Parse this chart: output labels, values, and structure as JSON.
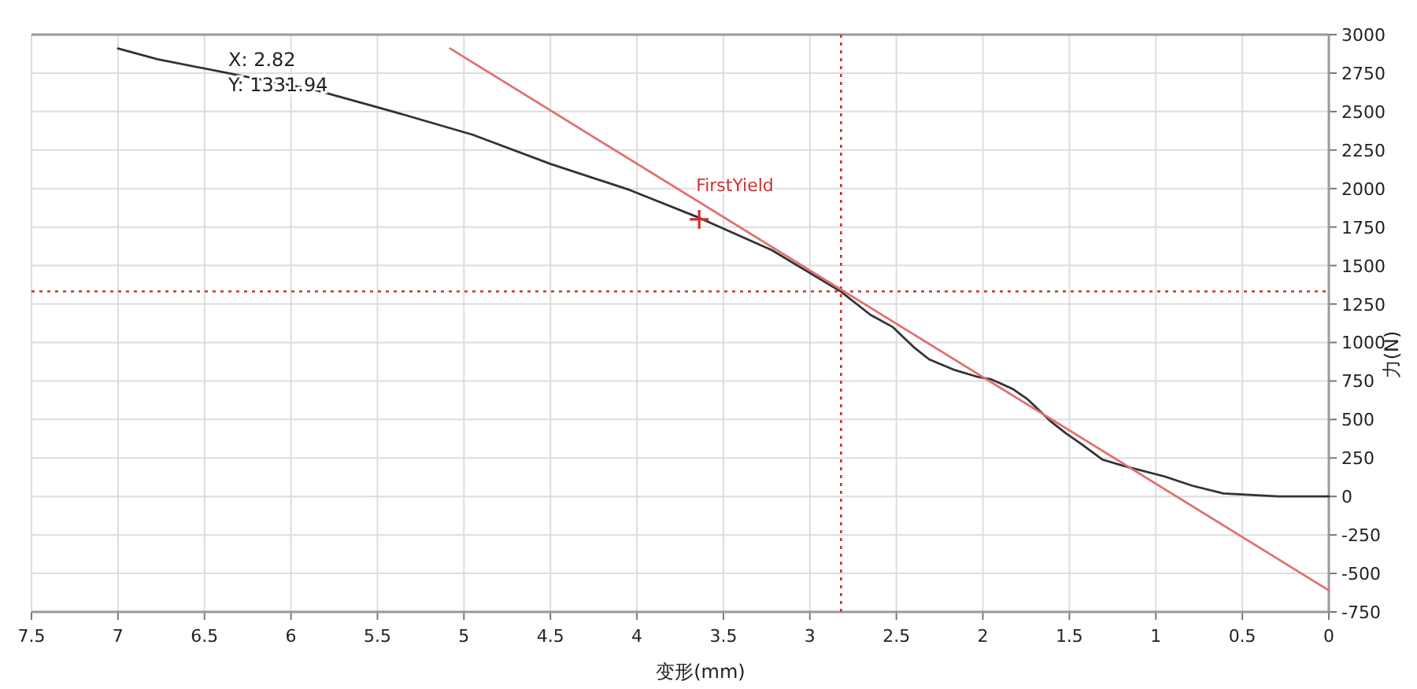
{
  "chart_data": {
    "type": "line",
    "xlabel": "变形(mm)",
    "ylabel": "力(N)",
    "xlim": [
      7.5,
      0
    ],
    "xticks": [
      0,
      0.5,
      1,
      1.5,
      2,
      2.5,
      3,
      3.5,
      4,
      4.5,
      5,
      5.5,
      6,
      6.5,
      7,
      7.5
    ],
    "ylim": [
      -750,
      3000
    ],
    "yticks": [
      -750,
      -500,
      -250,
      0,
      250,
      500,
      750,
      1000,
      1250,
      1500,
      1750,
      2000,
      2250,
      2500,
      2750,
      3000
    ],
    "grid": true,
    "series": [
      {
        "color": "#333333",
        "x": [
          0,
          0.29,
          0.61,
          0.79,
          0.95,
          1.19,
          1.31,
          1.43,
          1.52,
          1.61,
          1.74,
          1.83,
          1.95,
          2.04,
          2.16,
          2.31,
          2.4,
          2.52,
          2.65,
          2.82,
          3.22,
          3.64,
          4.04,
          4.5,
          4.95,
          5.41,
          5.86,
          6.32,
          6.77,
          7.0
        ],
        "values": [
          0,
          0,
          20,
          70,
          130,
          200,
          240,
          340,
          410,
          490,
          630,
          700,
          760,
          780,
          820,
          890,
          970,
          1100,
          1180,
          1330,
          1600,
          1810,
          1990,
          2160,
          2350,
          2500,
          2640,
          2740,
          2840,
          2910
        ]
      },
      {
        "type": "line",
        "color": "#e07070",
        "x": [
          0,
          5.08
        ],
        "values": [
          -610,
          2910
        ]
      },
      {
        "type": "scatter",
        "marker": "cross",
        "color": "#d03030",
        "x": [
          3.64
        ],
        "values": [
          1800
        ]
      }
    ],
    "ref_lines": [
      {
        "axis": "x",
        "value": 2.82,
        "color": "#d03030",
        "line_style": "dotted"
      },
      {
        "axis": "y",
        "value": 1332,
        "color": "#d03030",
        "line_style": "dotted"
      }
    ],
    "annotations": [
      {
        "text": "FirstYield",
        "x": 3.64,
        "y": 1798
      },
      "X: 2.82",
      "Y: 1331.94"
    ]
  }
}
